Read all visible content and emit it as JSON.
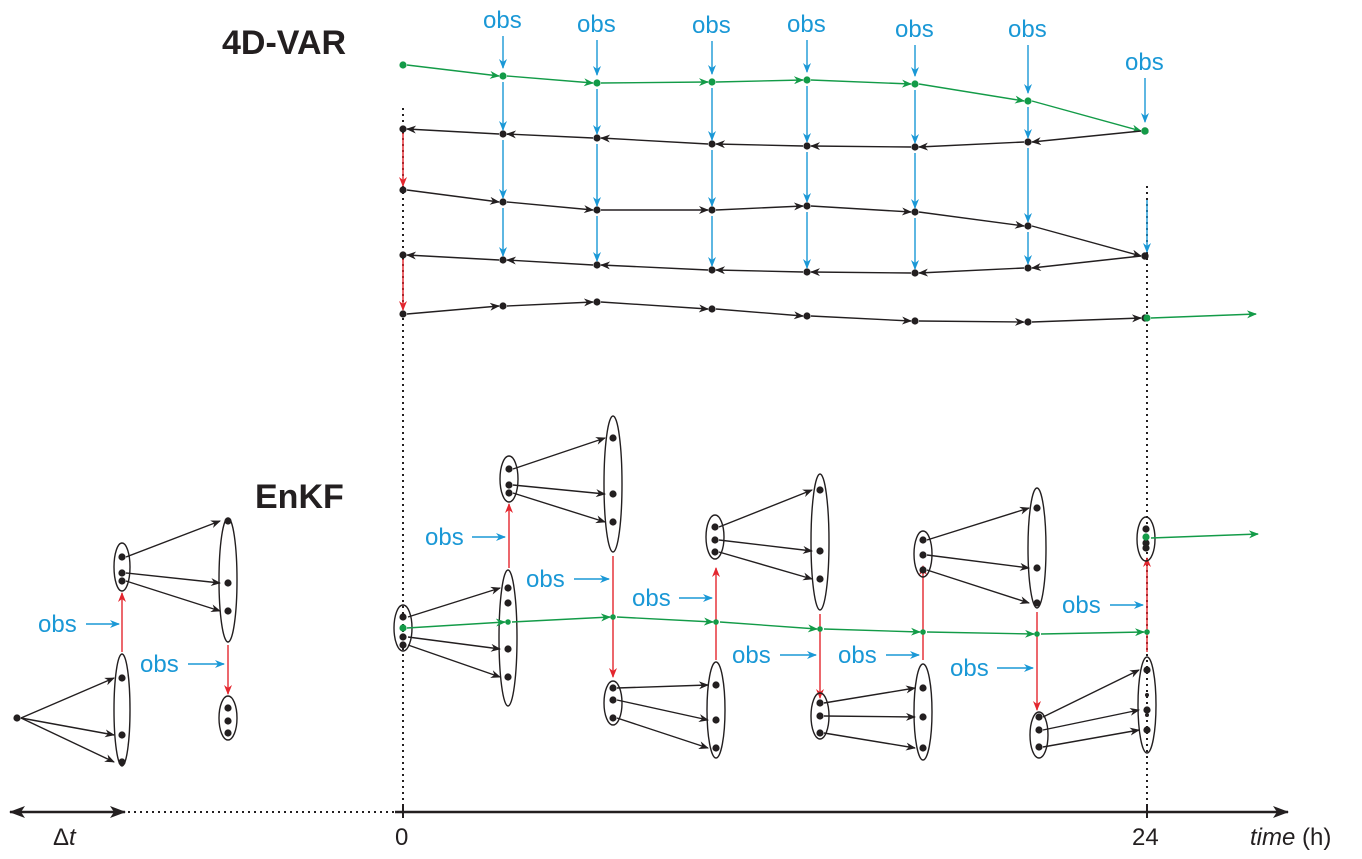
{
  "titles": {
    "var4d": "4D-VAR",
    "enkf": "EnKF"
  },
  "obs_label": "obs",
  "axis": {
    "start_label": "0",
    "end_label": "24",
    "dt_symbol": "Δ",
    "dt_var": "t",
    "time_word": "time",
    "time_unit": " (h)"
  },
  "colors": {
    "black": "#231f20",
    "green": "#139b48",
    "blue": "#1a98d6",
    "red": "#e3262e"
  }
}
